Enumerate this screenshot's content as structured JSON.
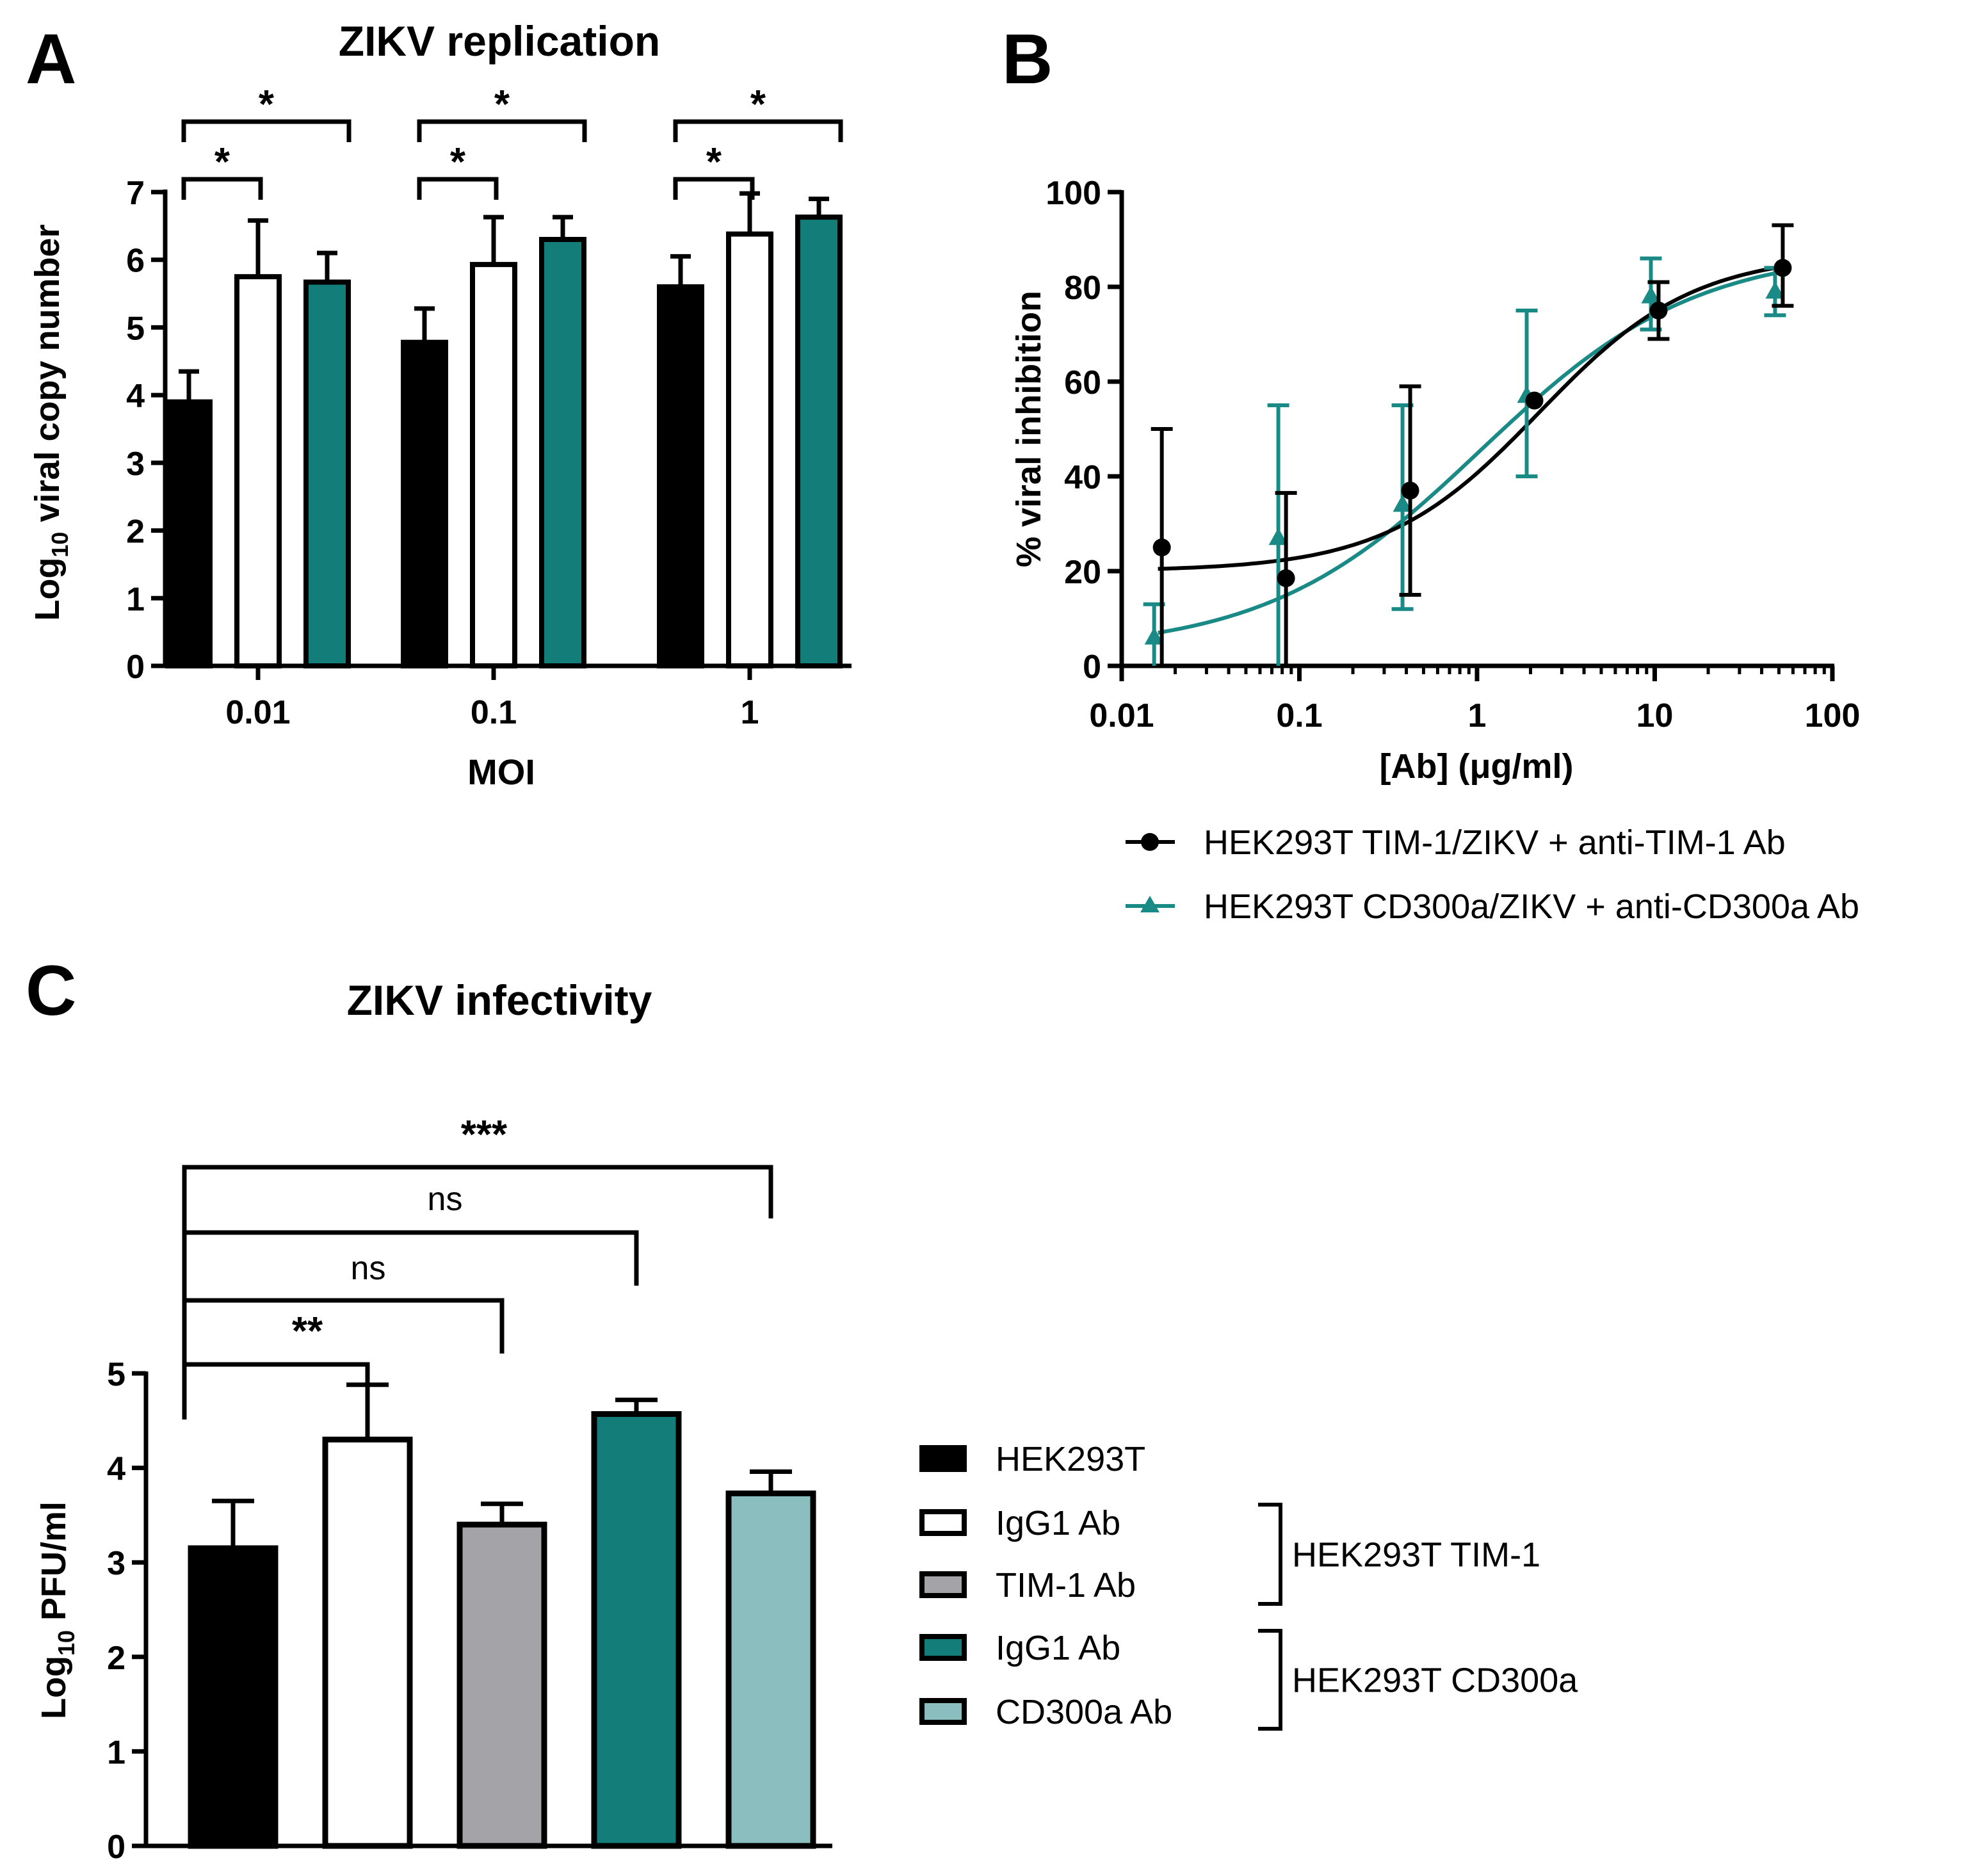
{
  "panels": {
    "A": {
      "letter": "A"
    },
    "B": {
      "letter": "B"
    },
    "C": {
      "letter": "C"
    }
  },
  "colors": {
    "black": "#000000",
    "white": "#ffffff",
    "teal": "#137d79",
    "gray": "#a3a3a8",
    "light_teal": "#8bbfbf"
  },
  "chart_data": [
    {
      "id": "A",
      "type": "bar",
      "title": "ZIKV replication",
      "xlabel": "MOI",
      "ylabel_main": "Log",
      "ylabel_sub": "10",
      "ylabel_rest": " viral copy number",
      "ylim": [
        0,
        7
      ],
      "yticks": [
        "0",
        "1",
        "2",
        "3",
        "4",
        "5",
        "6",
        "7"
      ],
      "categories": [
        "0.01",
        "0.1",
        "1"
      ],
      "series": [
        {
          "name": "HEK293T",
          "fill": "#000000",
          "values": [
            3.9,
            4.78,
            5.6
          ],
          "errors": [
            0.45,
            0.5,
            0.45
          ]
        },
        {
          "name": "HEK293T TIM-1",
          "fill": "#ffffff",
          "values": [
            5.75,
            5.93,
            6.38
          ],
          "errors": [
            0.83,
            0.7,
            0.6
          ]
        },
        {
          "name": "HEK293T CD300a",
          "fill": "#137d79",
          "values": [
            5.67,
            6.3,
            6.63
          ],
          "errors": [
            0.43,
            0.33,
            0.27
          ]
        }
      ],
      "significance": [
        {
          "group": 0,
          "from": 0,
          "to": 1,
          "label": "*"
        },
        {
          "group": 0,
          "from": 0,
          "to": 2,
          "label": "*"
        },
        {
          "group": 1,
          "from": 0,
          "to": 1,
          "label": "*"
        },
        {
          "group": 1,
          "from": 0,
          "to": 2,
          "label": "*"
        },
        {
          "group": 2,
          "from": 0,
          "to": 1,
          "label": "*"
        },
        {
          "group": 2,
          "from": 0,
          "to": 2,
          "label": "*"
        }
      ]
    },
    {
      "id": "B",
      "type": "scatter",
      "xscale": "log",
      "xlabel": "[Ab] (μg/ml)",
      "ylabel": "% viral inhibition",
      "xlim": [
        0.01,
        100
      ],
      "ylim": [
        0,
        100
      ],
      "xticks": [
        {
          "value": 0.01,
          "label": "0.01"
        },
        {
          "value": 0.1,
          "label": "0.1"
        },
        {
          "value": 1,
          "label": "1"
        },
        {
          "value": 10,
          "label": "10"
        },
        {
          "value": 100,
          "label": "100"
        }
      ],
      "yticks": [
        "0",
        "20",
        "40",
        "60",
        "80",
        "100"
      ],
      "series": [
        {
          "name": "HEK293T TIM-1/ZIKV + anti-TIM-1 Ab",
          "color": "#000000",
          "marker": "circle",
          "x": [
            0.016,
            0.08,
            0.4,
            2,
            10,
            50
          ],
          "y": [
            25,
            18.5,
            37,
            56,
            75,
            84
          ],
          "err_up": [
            25,
            18,
            22,
            0,
            6,
            9
          ],
          "err_down": [
            25,
            18.5,
            22,
            0,
            6,
            8
          ],
          "curve": {
            "bottom": 20,
            "top": 87,
            "logEC50": 0.35,
            "hill": 1.0
          }
        },
        {
          "name": "HEK293T CD300a/ZIKV + anti-CD300a Ab",
          "color": "#1a8a86",
          "marker": "triangle",
          "x": [
            0.016,
            0.08,
            0.4,
            2,
            10,
            50
          ],
          "y": [
            6,
            27,
            34,
            57,
            78,
            79
          ],
          "err_up": [
            7,
            28,
            21,
            18,
            8,
            5
          ],
          "err_down": [
            6,
            27,
            22,
            17,
            7,
            5
          ],
          "curve": {
            "bottom": 3,
            "top": 88,
            "logEC50": 0.02,
            "hill": 0.72
          }
        }
      ]
    },
    {
      "id": "C",
      "type": "bar",
      "title": "ZIKV infectivity",
      "ylabel_main": "Log",
      "ylabel_sub": "10",
      "ylabel_rest": " PFU/ml",
      "ylim": [
        0,
        5
      ],
      "yticks": [
        "0",
        "1",
        "2",
        "3",
        "4",
        "5"
      ],
      "bars": [
        {
          "label": "HEK293T",
          "fill": "#000000",
          "value": 3.15,
          "error": 0.5
        },
        {
          "label": "IgG1 Ab",
          "fill": "#ffffff",
          "value": 4.3,
          "error": 0.58
        },
        {
          "label": "TIM-1 Ab",
          "fill": "#a3a3a8",
          "value": 3.4,
          "error": 0.22
        },
        {
          "label": "IgG1 Ab",
          "fill": "#137d79",
          "value": 4.57,
          "error": 0.15
        },
        {
          "label": "CD300a Ab",
          "fill": "#8bbfbf",
          "value": 3.73,
          "error": 0.23
        }
      ],
      "significance": [
        {
          "from": 0,
          "to": 1,
          "label": "**"
        },
        {
          "from": 0,
          "to": 2,
          "label": "ns"
        },
        {
          "from": 0,
          "to": 3,
          "label": "ns"
        },
        {
          "from": 0,
          "to": 4,
          "label": "***"
        }
      ],
      "legend_groups": [
        {
          "label": "HEK293T TIM-1",
          "items": [
            1,
            2
          ]
        },
        {
          "label": "HEK293T CD300a",
          "items": [
            3,
            4
          ]
        }
      ]
    }
  ]
}
